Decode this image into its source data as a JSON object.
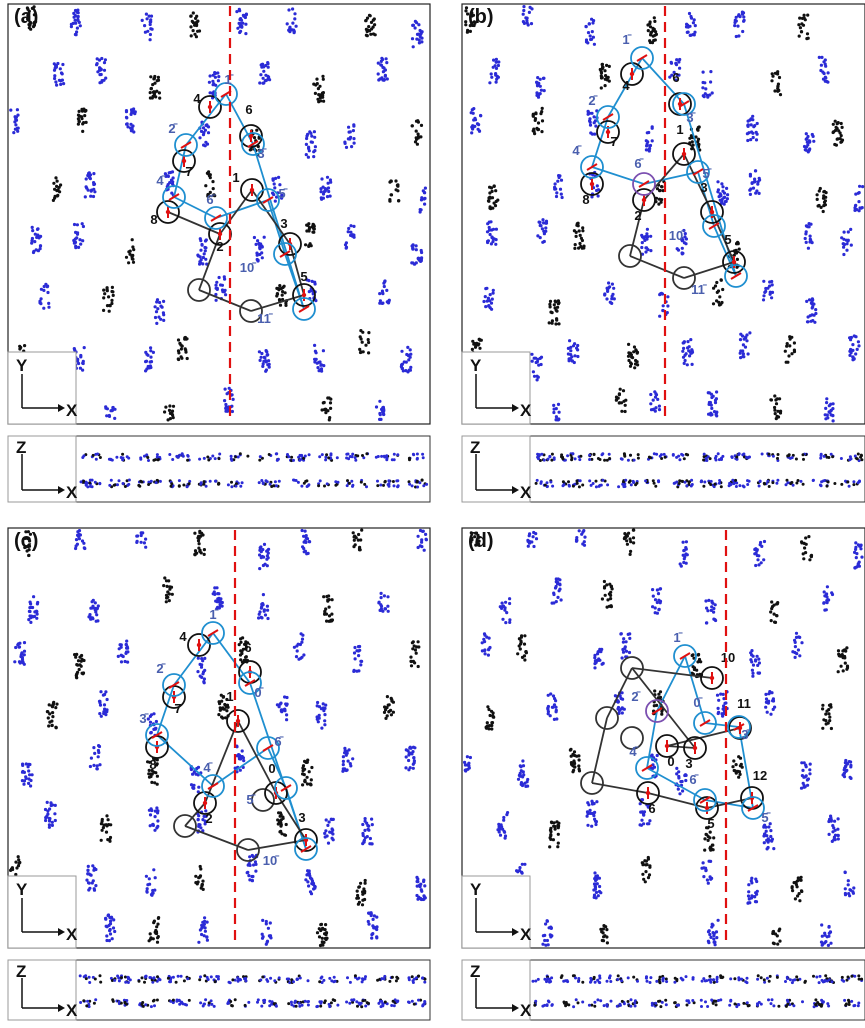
{
  "panels": [
    {
      "label": "(a)",
      "axis_xy": [
        "Y",
        "X"
      ],
      "axis_zx": [
        "Z",
        "X"
      ],
      "black_labels": [
        "4",
        "6",
        "7",
        "1",
        "8",
        "2",
        "3",
        "5"
      ],
      "blue_labels": [
        "1̄",
        "2̄",
        "3̄",
        "4̄",
        "6̄",
        "5̄",
        "10̄",
        "11̄"
      ]
    },
    {
      "label": "(b)",
      "axis_xy": [
        "Y",
        "X"
      ],
      "axis_zx": [
        "Z",
        "X"
      ],
      "black_labels": [
        "4",
        "6",
        "7",
        "1",
        "8",
        "2",
        "3",
        "5"
      ],
      "blue_labels": [
        "1̄",
        "2̄",
        "3̄",
        "4̄",
        "6̄",
        "5̄",
        "10̄",
        "11̄"
      ]
    },
    {
      "label": "(c)",
      "axis_xy": [
        "Y",
        "X"
      ],
      "axis_zx": [
        "Z",
        "X"
      ],
      "black_labels": [
        "4",
        "6",
        "7",
        "1",
        "8",
        "2",
        "0",
        "3",
        "5"
      ],
      "blue_labels": [
        "1̄",
        "2̄",
        "0̄",
        "3̄",
        "4̄",
        "6̄",
        "5̄",
        "10̄",
        "11̄"
      ]
    },
    {
      "label": "(d)",
      "axis_xy": [
        "Y",
        "X"
      ],
      "axis_zx": [
        "Z",
        "X"
      ],
      "black_labels": [
        "10",
        "11",
        "3",
        "0",
        "12",
        "6",
        "5"
      ],
      "blue_labels": [
        "1̄",
        "2̄",
        "0̄",
        "3̄",
        "4̄",
        "6̄",
        "5̄"
      ]
    }
  ],
  "colors": {
    "blue_atom": "#2b2bd6",
    "black_atom": "#111111",
    "blue_ring": "#1f8fd0",
    "black_ring": "#111111",
    "purple_ring": "#7b4fb0",
    "vector": "#e01010",
    "dashed_line": "#e01010",
    "blue_label": "#4a5fae"
  }
}
